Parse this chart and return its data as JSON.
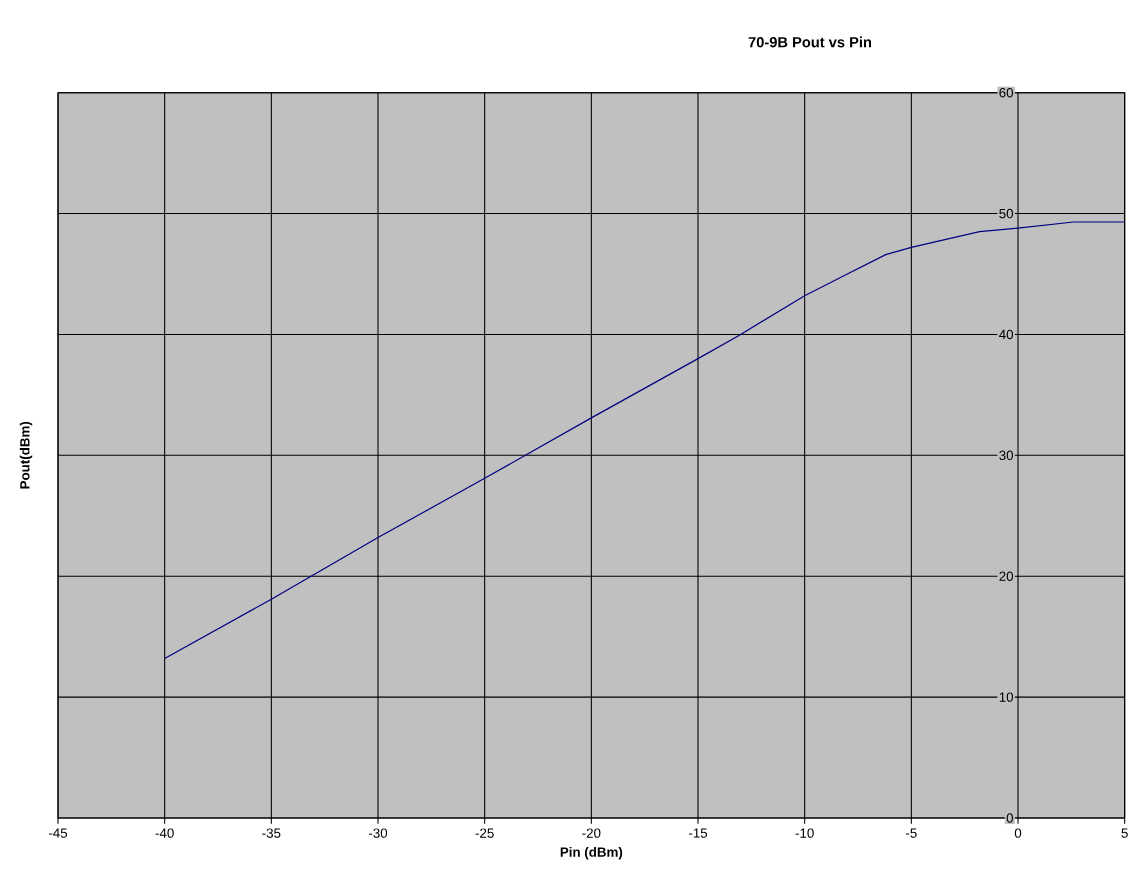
{
  "chart_data": {
    "type": "line",
    "title": "70-9B Pout vs Pin",
    "xlabel": "Pin (dBm)",
    "ylabel": "Pout(dBm)",
    "x": [
      -40,
      -35,
      -30,
      -25,
      -20,
      -15,
      -13.1,
      -10,
      -8,
      -6.2,
      -5,
      -1.8,
      0,
      2.6,
      5
    ],
    "series": [
      {
        "color": "#000080",
        "values": [
          13.2,
          18.1,
          23.2,
          28.1,
          33.1,
          38.0,
          39.9,
          43.2,
          45.0,
          46.6,
          47.2,
          48.5,
          48.8,
          49.3,
          49.3
        ]
      }
    ],
    "xlim": [
      -45,
      5
    ],
    "ylim": [
      0,
      60
    ],
    "xticks": [
      -45,
      -40,
      -35,
      -30,
      -25,
      -20,
      -15,
      -10,
      -5,
      0,
      5
    ],
    "yticks": [
      0,
      10,
      20,
      30,
      40,
      50,
      60
    ],
    "grid": true,
    "marker": "none",
    "line_style": "solid"
  }
}
